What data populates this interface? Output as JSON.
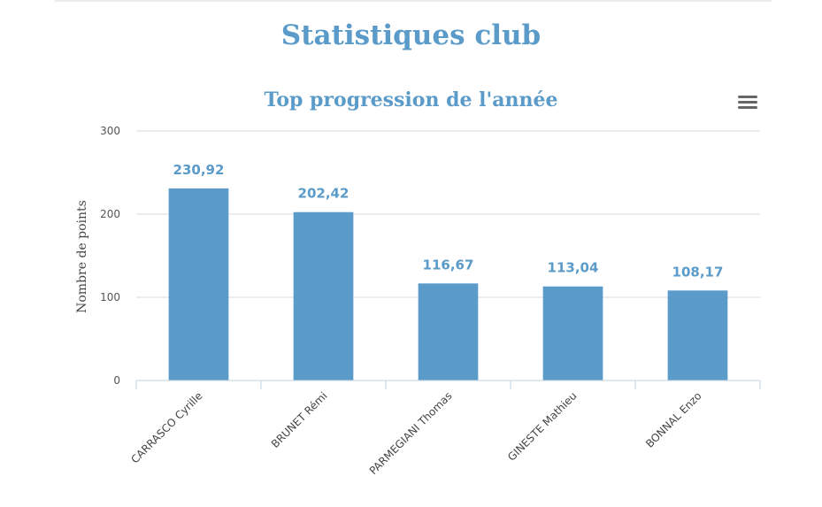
{
  "page": {
    "title": "Statistiques club"
  },
  "menu": {
    "icon": "hamburger-menu-icon"
  },
  "colors": {
    "bar": "#5b9bc9",
    "title": "#5b9bc9",
    "grid": "#d9d9d9",
    "axis": "#c0d0e0"
  },
  "chart_data": {
    "type": "bar",
    "title": "Top progression de l'année",
    "xlabel": "",
    "ylabel": "Nombre de points",
    "ylim": [
      0,
      300
    ],
    "yticks": [
      0,
      100,
      200,
      300
    ],
    "categories": [
      "CARRASCO Cyrille",
      "BRUNET Rémi",
      "PARMEGIANI Thomas",
      "GINESTE Mathieu",
      "BONNAL Enzo"
    ],
    "values": [
      230.92,
      202.42,
      116.67,
      113.04,
      108.17
    ],
    "value_labels": [
      "230,92",
      "202,42",
      "116,67",
      "113,04",
      "108,17"
    ],
    "grid": true,
    "legend": "none"
  }
}
